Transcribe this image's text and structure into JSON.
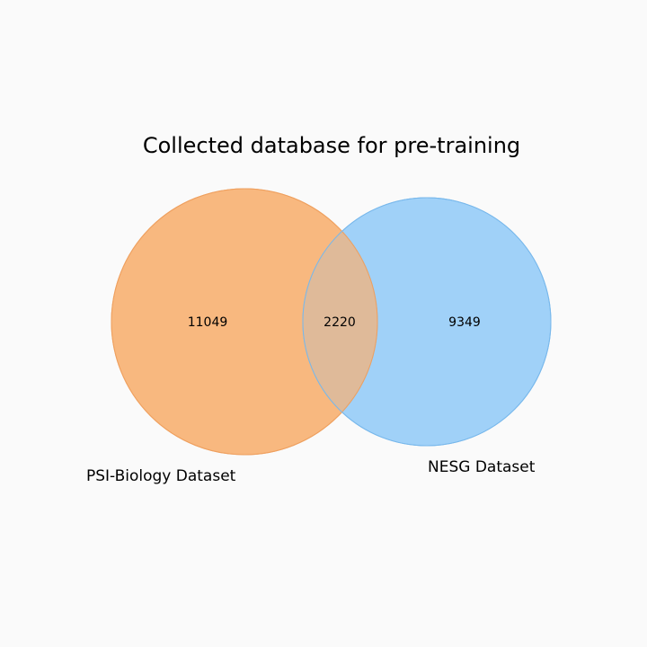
{
  "diagram": {
    "type": "venn-2",
    "title": "Collected database for pre-training",
    "sets": [
      {
        "name": "PSI-Biology Dataset",
        "color": "#f7a155"
      },
      {
        "name": "NESG Dataset",
        "color": "#64b5f6"
      }
    ],
    "overlap_color": "#dfba99",
    "counts": {
      "only_a": "11049",
      "both": "2220",
      "only_b": "9349"
    }
  }
}
